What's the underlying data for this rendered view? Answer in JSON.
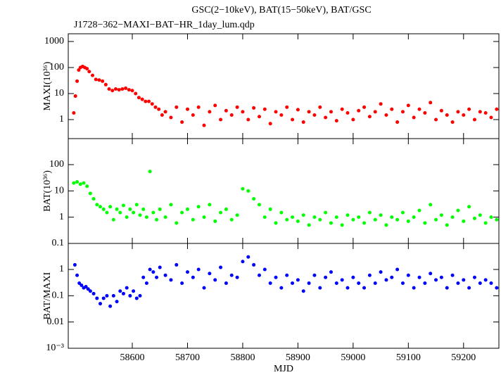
{
  "chart_data": [
    {
      "type": "scatter",
      "title": "GSC(2−10keV), BAT(15−50keV), BAT/GSC",
      "subtitle": "J1728−362−MAXI−BAT−HR_1day_lum.qdp",
      "ylabel": "MAXI(10³⁶)",
      "color": "#ff0000",
      "log_y": true,
      "xlim": [
        58484,
        59264
      ],
      "ylim": [
        0.186,
        1980
      ],
      "yticks": [
        1,
        10,
        100,
        1000
      ],
      "x": [
        58494,
        58497,
        58500,
        58503,
        58506,
        58510,
        58514,
        58518,
        58522,
        58528,
        58534,
        58540,
        58546,
        58552,
        58558,
        58564,
        58570,
        58576,
        58582,
        58588,
        58594,
        58600,
        58606,
        58612,
        58618,
        58624,
        58630,
        58636,
        58642,
        58648,
        58654,
        58660,
        58670,
        58680,
        58690,
        58700,
        58710,
        58720,
        58730,
        58740,
        58750,
        58760,
        58770,
        58780,
        58790,
        58800,
        58810,
        58820,
        58830,
        58840,
        58850,
        58860,
        58870,
        58880,
        58890,
        58900,
        58910,
        58920,
        58930,
        58940,
        58950,
        58960,
        58970,
        58980,
        58990,
        59000,
        59010,
        59020,
        59030,
        59040,
        59050,
        59060,
        59070,
        59080,
        59090,
        59100,
        59110,
        59120,
        59130,
        59140,
        59150,
        59160,
        59170,
        59180,
        59190,
        59200,
        59210,
        59220,
        59230,
        59240,
        59250,
        59260
      ],
      "values": [
        1.8,
        8,
        30,
        80,
        100,
        110,
        100,
        90,
        70,
        50,
        35,
        33,
        30,
        22,
        15,
        13,
        15,
        14,
        15,
        16,
        14,
        13,
        10,
        7,
        6,
        5,
        5,
        4,
        3,
        2.5,
        1.5,
        2,
        1.2,
        3,
        0.8,
        2.5,
        1.5,
        3,
        0.6,
        2,
        3.5,
        1,
        2.2,
        1.5,
        3,
        2,
        1,
        2.8,
        1.3,
        2.5,
        0.7,
        2,
        1.5,
        3,
        1,
        2.4,
        0.8,
        2,
        1.5,
        3,
        1.2,
        2,
        0.9,
        2.5,
        1.8,
        1,
        2.2,
        3,
        1.3,
        2,
        4,
        1.5,
        2.5,
        0.8,
        2,
        3.5,
        1.2,
        2.5,
        1.8,
        4.5,
        1,
        2.2,
        1.5,
        0.8,
        2,
        1.5,
        2.5,
        1,
        2,
        1.8,
        1.2,
        2.5
      ]
    },
    {
      "type": "scatter",
      "ylabel": "BAT(10³⁶)",
      "color": "#00ff00",
      "log_y": true,
      "xlim": [
        58484,
        59264
      ],
      "ylim": [
        0.1,
        980
      ],
      "yticks": [
        0.1,
        1,
        10,
        100
      ],
      "x": [
        58494,
        58500,
        58506,
        58512,
        58518,
        58524,
        58530,
        58536,
        58542,
        58548,
        58554,
        58560,
        58566,
        58572,
        58578,
        58584,
        58590,
        58596,
        58602,
        58608,
        58614,
        58620,
        58626,
        58632,
        58638,
        58644,
        58650,
        58660,
        58670,
        58680,
        58690,
        58700,
        58710,
        58720,
        58730,
        58740,
        58750,
        58760,
        58770,
        58780,
        58790,
        58800,
        58810,
        58820,
        58830,
        58840,
        58850,
        58860,
        58870,
        58880,
        58890,
        58900,
        58910,
        58920,
        58930,
        58940,
        58950,
        58960,
        58970,
        58980,
        58990,
        59000,
        59010,
        59020,
        59030,
        59040,
        59050,
        59060,
        59070,
        59080,
        59090,
        59100,
        59110,
        59120,
        59130,
        59140,
        59150,
        59160,
        59170,
        59180,
        59190,
        59200,
        59210,
        59220,
        59230,
        59240,
        59250,
        59260
      ],
      "values": [
        20,
        22,
        18,
        20,
        15,
        8,
        5,
        3,
        2.5,
        2,
        1.5,
        2.5,
        0.8,
        2,
        1.5,
        2.8,
        1,
        2,
        1.5,
        3,
        1.2,
        2,
        1,
        55,
        1.5,
        0.8,
        2,
        1,
        3,
        0.6,
        1.5,
        2,
        0.8,
        2.5,
        1,
        3,
        0.7,
        1.5,
        2,
        0.8,
        1.2,
        12,
        10,
        5,
        3,
        1,
        2,
        0.6,
        1.5,
        0.8,
        1,
        0.7,
        1.2,
        0.5,
        1,
        0.8,
        1.5,
        0.6,
        1,
        0.5,
        1.2,
        0.8,
        1,
        0.6,
        1.5,
        0.8,
        1.2,
        0.5,
        1,
        0.8,
        1.5,
        0.7,
        1,
        1.8,
        0.6,
        3,
        0.8,
        1.2,
        0.5,
        1,
        1.8,
        0.7,
        2.5,
        0.9,
        1.2,
        0.6,
        1,
        0.8
      ]
    },
    {
      "type": "scatter",
      "ylabel": "BAT/MAXI",
      "xlabel": "MJD",
      "color": "#0000ff",
      "log_y": true,
      "xlim": [
        58484,
        59264
      ],
      "ylim": [
        0.001,
        9.8
      ],
      "yticks": [
        {
          "value": 0.001,
          "label": "10⁻³"
        },
        0.01,
        0.1,
        1
      ],
      "xticks": [
        58600,
        58700,
        58800,
        58900,
        59000,
        59100,
        59200
      ],
      "x": [
        58496,
        58500,
        58504,
        58508,
        58512,
        58516,
        58520,
        58524,
        58530,
        58536,
        58542,
        58548,
        58554,
        58560,
        58566,
        58572,
        58578,
        58584,
        58590,
        58596,
        58602,
        58608,
        58614,
        58620,
        58626,
        58632,
        58638,
        58644,
        58650,
        58660,
        58670,
        58680,
        58690,
        58700,
        58710,
        58720,
        58730,
        58740,
        58750,
        58760,
        58770,
        58780,
        58790,
        58800,
        58810,
        58820,
        58830,
        58840,
        58850,
        58860,
        58870,
        58880,
        58890,
        58900,
        58910,
        58920,
        58930,
        58940,
        58950,
        58960,
        58970,
        58980,
        58990,
        59000,
        59010,
        59020,
        59030,
        59040,
        59050,
        59060,
        59070,
        59080,
        59090,
        59100,
        59110,
        59120,
        59130,
        59140,
        59150,
        59160,
        59170,
        59180,
        59190,
        59200,
        59210,
        59220,
        59230,
        59240,
        59250,
        59260
      ],
      "values": [
        1.5,
        0.6,
        0.3,
        0.25,
        0.2,
        0.22,
        0.18,
        0.15,
        0.12,
        0.08,
        0.05,
        0.08,
        0.1,
        0.04,
        0.1,
        0.06,
        0.15,
        0.12,
        0.2,
        0.1,
        0.15,
        0.08,
        0.1,
        0.5,
        0.3,
        1,
        0.8,
        0.5,
        1.2,
        0.6,
        0.4,
        1.5,
        0.3,
        0.8,
        0.5,
        1,
        0.2,
        0.7,
        0.4,
        1.2,
        0.3,
        0.6,
        0.5,
        2,
        3,
        1.5,
        0.6,
        1,
        0.3,
        0.5,
        0.2,
        0.6,
        0.3,
        0.4,
        0.15,
        0.3,
        0.6,
        0.2,
        0.5,
        0.8,
        0.3,
        0.4,
        0.2,
        0.5,
        0.3,
        0.2,
        0.6,
        0.3,
        0.8,
        0.4,
        0.5,
        1,
        0.3,
        0.6,
        0.2,
        0.5,
        0.3,
        0.7,
        0.4,
        0.5,
        0.2,
        0.6,
        0.3,
        0.4,
        0.2,
        0.5,
        0.3,
        0.4,
        0.3,
        0.2
      ]
    }
  ]
}
